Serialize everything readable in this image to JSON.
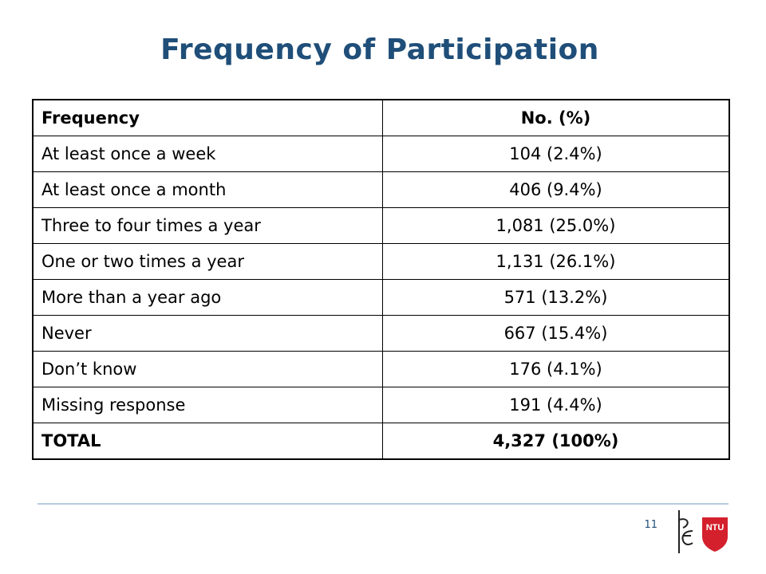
{
  "title": "Frequency of Participation",
  "table": {
    "headers": [
      "Frequency",
      "No. (%)"
    ],
    "rows": [
      [
        "At least once a week",
        "104 (2.4%)"
      ],
      [
        "At least once a month",
        "406 (9.4%)"
      ],
      [
        "Three to four times a year",
        "1,081 (25.0%)"
      ],
      [
        "One or two times a year",
        "1,131 (26.1%)"
      ],
      [
        "More than a year ago",
        "571 (13.2%)"
      ],
      [
        "Never",
        "667 (15.4%)"
      ],
      [
        "Don’t know",
        "176 (4.1%)"
      ],
      [
        "Missing response",
        "191 (4.4%)"
      ],
      [
        "TOTAL",
        "4,327 (100%)"
      ]
    ]
  },
  "footer": {
    "page_number": "11",
    "logo_text": "NTU",
    "logo_icon": "ntu-shield-icon",
    "mark_icon": "figure-mark-icon"
  },
  "colors": {
    "title": "#1f4e79",
    "divider": "#b8cbe0",
    "logo": "#d4202c"
  }
}
